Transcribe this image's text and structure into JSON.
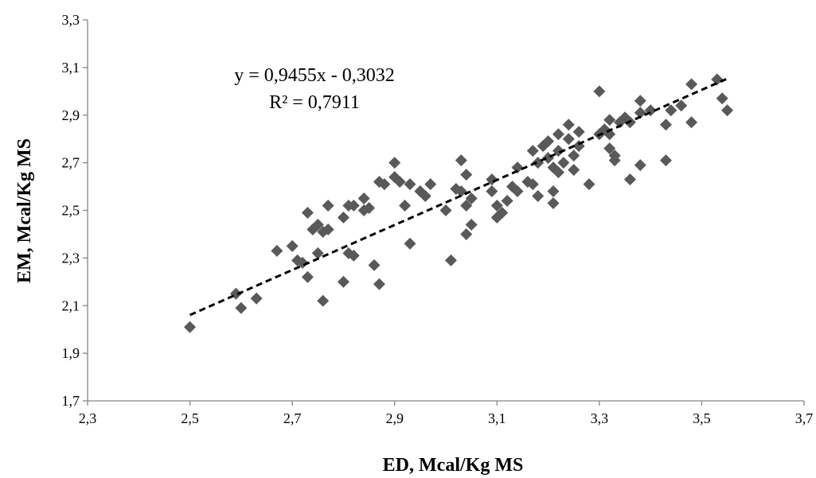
{
  "chart_data": {
    "type": "scatter",
    "title": "",
    "xlabel": "ED, Mcal/Kg MS",
    "ylabel": "EM, Mcal/Kg MS",
    "xlim": [
      2.3,
      3.7
    ],
    "ylim": [
      1.7,
      3.3
    ],
    "x_ticks": [
      "2,3",
      "2,5",
      "2,7",
      "2,9",
      "3,1",
      "3,3",
      "3,5",
      "3,7"
    ],
    "y_ticks": [
      "1,7",
      "1,9",
      "2,1",
      "2,3",
      "2,5",
      "2,7",
      "2,9",
      "3,1",
      "3,3"
    ],
    "x_tick_values": [
      2.3,
      2.5,
      2.7,
      2.9,
      3.1,
      3.3,
      3.5,
      3.7
    ],
    "y_tick_values": [
      1.7,
      1.9,
      2.1,
      2.3,
      2.5,
      2.7,
      2.9,
      3.1,
      3.3
    ],
    "grid": false,
    "marker_color": "#595959",
    "trendline": {
      "slope": 0.9455,
      "intercept": -0.3032,
      "x_range": [
        2.5,
        3.55
      ],
      "style": "dashed",
      "equation_label": "y = 0,9455x - 0,3032",
      "r2_label": "R² = 0,7911"
    },
    "points": [
      [
        2.5,
        2.01
      ],
      [
        2.59,
        2.15
      ],
      [
        2.6,
        2.09
      ],
      [
        2.63,
        2.13
      ],
      [
        2.67,
        2.33
      ],
      [
        2.7,
        2.35
      ],
      [
        2.71,
        2.29
      ],
      [
        2.72,
        2.28
      ],
      [
        2.73,
        2.22
      ],
      [
        2.73,
        2.49
      ],
      [
        2.74,
        2.42
      ],
      [
        2.75,
        2.32
      ],
      [
        2.75,
        2.44
      ],
      [
        2.76,
        2.41
      ],
      [
        2.76,
        2.12
      ],
      [
        2.77,
        2.42
      ],
      [
        2.77,
        2.52
      ],
      [
        2.8,
        2.2
      ],
      [
        2.8,
        2.47
      ],
      [
        2.81,
        2.32
      ],
      [
        2.81,
        2.52
      ],
      [
        2.82,
        2.31
      ],
      [
        2.82,
        2.52
      ],
      [
        2.84,
        2.5
      ],
      [
        2.84,
        2.55
      ],
      [
        2.85,
        2.51
      ],
      [
        2.86,
        2.27
      ],
      [
        2.87,
        2.19
      ],
      [
        2.87,
        2.62
      ],
      [
        2.88,
        2.61
      ],
      [
        2.9,
        2.7
      ],
      [
        2.9,
        2.64
      ],
      [
        2.91,
        2.62
      ],
      [
        2.92,
        2.52
      ],
      [
        2.93,
        2.36
      ],
      [
        2.93,
        2.61
      ],
      [
        2.95,
        2.58
      ],
      [
        2.96,
        2.56
      ],
      [
        2.97,
        2.61
      ],
      [
        3.0,
        2.5
      ],
      [
        3.01,
        2.29
      ],
      [
        3.02,
        2.59
      ],
      [
        3.03,
        2.71
      ],
      [
        3.03,
        2.58
      ],
      [
        3.04,
        2.4
      ],
      [
        3.04,
        2.65
      ],
      [
        3.04,
        2.52
      ],
      [
        3.05,
        2.44
      ],
      [
        3.05,
        2.55
      ],
      [
        3.09,
        2.63
      ],
      [
        3.09,
        2.58
      ],
      [
        3.1,
        2.47
      ],
      [
        3.1,
        2.52
      ],
      [
        3.11,
        2.49
      ],
      [
        3.12,
        2.54
      ],
      [
        3.13,
        2.6
      ],
      [
        3.14,
        2.68
      ],
      [
        3.14,
        2.58
      ],
      [
        3.16,
        2.62
      ],
      [
        3.17,
        2.61
      ],
      [
        3.17,
        2.75
      ],
      [
        3.18,
        2.7
      ],
      [
        3.18,
        2.56
      ],
      [
        3.19,
        2.77
      ],
      [
        3.2,
        2.72
      ],
      [
        3.2,
        2.79
      ],
      [
        3.21,
        2.53
      ],
      [
        3.21,
        2.58
      ],
      [
        3.21,
        2.68
      ],
      [
        3.22,
        2.75
      ],
      [
        3.22,
        2.66
      ],
      [
        3.22,
        2.82
      ],
      [
        3.23,
        2.7
      ],
      [
        3.24,
        2.86
      ],
      [
        3.24,
        2.8
      ],
      [
        3.25,
        2.67
      ],
      [
        3.25,
        2.73
      ],
      [
        3.26,
        2.83
      ],
      [
        3.26,
        2.77
      ],
      [
        3.28,
        2.61
      ],
      [
        3.3,
        3.0
      ],
      [
        3.3,
        2.82
      ],
      [
        3.31,
        2.84
      ],
      [
        3.32,
        2.88
      ],
      [
        3.32,
        2.76
      ],
      [
        3.32,
        2.82
      ],
      [
        3.33,
        2.71
      ],
      [
        3.33,
        2.73
      ],
      [
        3.34,
        2.87
      ],
      [
        3.35,
        2.89
      ],
      [
        3.36,
        2.87
      ],
      [
        3.36,
        2.63
      ],
      [
        3.38,
        2.69
      ],
      [
        3.38,
        2.91
      ],
      [
        3.38,
        2.96
      ],
      [
        3.4,
        2.92
      ],
      [
        3.43,
        2.71
      ],
      [
        3.43,
        2.86
      ],
      [
        3.44,
        2.92
      ],
      [
        3.46,
        2.94
      ],
      [
        3.48,
        2.87
      ],
      [
        3.48,
        3.03
      ],
      [
        3.53,
        3.05
      ],
      [
        3.54,
        2.97
      ],
      [
        3.55,
        2.92
      ]
    ]
  }
}
